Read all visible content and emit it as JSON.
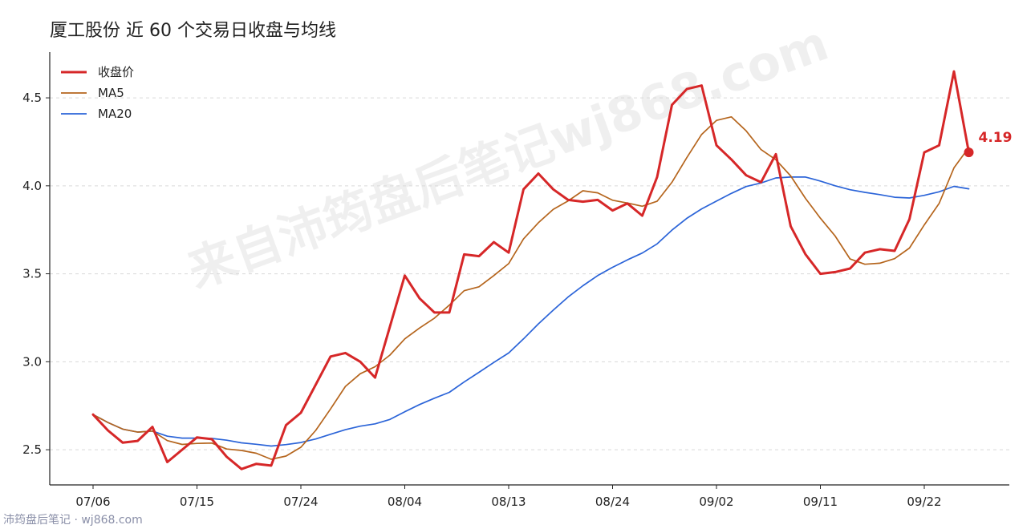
{
  "chart_data": {
    "type": "line",
    "title": "厦工股份 近 60 个交易日收盘与均线",
    "xlabel": "",
    "ylabel": "",
    "x_tick_labels": [
      "07/06",
      "07/15",
      "07/24",
      "08/04",
      "08/13",
      "08/24",
      "09/02",
      "09/11",
      "09/22"
    ],
    "x_tick_indices": [
      0,
      7,
      14,
      21,
      28,
      35,
      42,
      49,
      56
    ],
    "ylim": [
      2.3,
      4.76
    ],
    "y_ticks": [
      2.5,
      3.0,
      3.5,
      4.0,
      4.5
    ],
    "y_tick_labels": [
      "2.5",
      "3.0",
      "3.5",
      "4.0",
      "4.5"
    ],
    "grid": "horizontal",
    "legend_position": "top-left",
    "series": [
      {
        "name": "收盘价",
        "color": "#d62728",
        "values": [
          2.7,
          2.61,
          2.54,
          2.55,
          2.63,
          2.43,
          2.5,
          2.57,
          2.56,
          2.46,
          2.39,
          2.42,
          2.41,
          2.64,
          2.71,
          2.87,
          3.03,
          3.05,
          3.0,
          2.91,
          3.2,
          3.49,
          3.36,
          3.28,
          3.28,
          3.61,
          3.6,
          3.68,
          3.62,
          3.98,
          4.07,
          3.98,
          3.92,
          3.91,
          3.92,
          3.86,
          3.9,
          3.83,
          4.05,
          4.46,
          4.55,
          4.57,
          4.23,
          4.15,
          4.06,
          4.02,
          4.18,
          3.77,
          3.61,
          3.5,
          3.51,
          3.53,
          3.62,
          3.64,
          3.63,
          3.81,
          4.19,
          4.23,
          4.65,
          4.19
        ]
      },
      {
        "name": "MA5",
        "color": "#b5651d",
        "values": [
          2.7,
          2.655,
          2.617,
          2.6,
          2.606,
          2.552,
          2.53,
          2.536,
          2.538,
          2.504,
          2.496,
          2.48,
          2.446,
          2.464,
          2.514,
          2.61,
          2.732,
          2.86,
          2.932,
          2.972,
          3.038,
          3.13,
          3.192,
          3.248,
          3.322,
          3.404,
          3.426,
          3.49,
          3.558,
          3.698,
          3.79,
          3.866,
          3.914,
          3.972,
          3.96,
          3.918,
          3.902,
          3.884,
          3.912,
          4.02,
          4.16,
          4.292,
          4.372,
          4.392,
          4.312,
          4.206,
          4.148,
          4.056,
          3.928,
          3.816,
          3.714,
          3.584,
          3.554,
          3.56,
          3.586,
          3.646,
          3.778,
          3.9,
          4.102,
          4.218
        ]
      },
      {
        "name": "MA20",
        "color": "#2b64d8",
        "values": [
          2.7,
          2.655,
          2.617,
          2.6,
          2.606,
          2.577,
          2.566,
          2.566,
          2.564,
          2.554,
          2.539,
          2.531,
          2.521,
          2.529,
          2.541,
          2.561,
          2.588,
          2.614,
          2.634,
          2.647,
          2.672,
          2.716,
          2.757,
          2.793,
          2.826,
          2.885,
          2.94,
          2.996,
          3.05,
          3.13,
          3.215,
          3.293,
          3.368,
          3.432,
          3.49,
          3.537,
          3.579,
          3.618,
          3.67,
          3.748,
          3.815,
          3.869,
          3.913,
          3.957,
          3.996,
          4.016,
          4.045,
          4.05,
          4.05,
          4.027,
          4.0,
          3.978,
          3.963,
          3.95,
          3.935,
          3.931,
          3.946,
          3.966,
          3.997,
          3.983
        ]
      }
    ],
    "annotations": [
      {
        "series_index": 0,
        "point_index": 59,
        "text": "4.19",
        "color": "#d62728"
      }
    ]
  },
  "watermark": {
    "text": "来自沛筠盘后笔记wj868.com"
  },
  "footer": {
    "text": "沛筠盘后笔记 · wj868.com"
  }
}
